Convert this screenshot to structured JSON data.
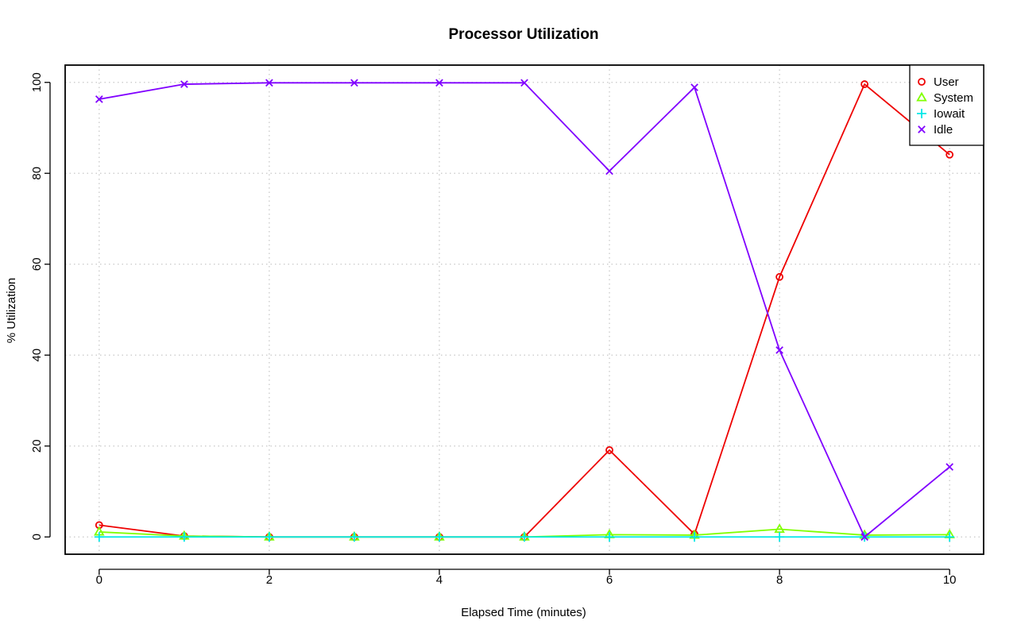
{
  "chart_data": {
    "type": "line",
    "title": "Processor Utilization",
    "xlabel": "Elapsed Time (minutes)",
    "ylabel": "% Utilization",
    "x": [
      0,
      1,
      2,
      3,
      4,
      5,
      6,
      7,
      8,
      9,
      10
    ],
    "x_ticks": [
      "0",
      "2",
      "4",
      "6",
      "8",
      "10"
    ],
    "y_ticks": [
      "0",
      "20",
      "40",
      "60",
      "80",
      "100"
    ],
    "xlim": [
      -0.4,
      10.4
    ],
    "ylim": [
      -3.8,
      103.8
    ],
    "grid": true,
    "legend_position": "top-right",
    "series": [
      {
        "name": "User",
        "color": "#ee0000",
        "marker": "circle",
        "values": [
          2.6,
          0.2,
          0.0,
          0.0,
          0.0,
          0.0,
          19.1,
          0.6,
          57.2,
          99.6,
          84.1
        ]
      },
      {
        "name": "System",
        "color": "#80ff00",
        "marker": "triangle",
        "values": [
          1.1,
          0.2,
          0.0,
          0.0,
          0.0,
          0.0,
          0.5,
          0.4,
          1.7,
          0.4,
          0.5
        ]
      },
      {
        "name": "Iowait",
        "color": "#00e8e8",
        "marker": "plus",
        "values": [
          0.0,
          0.0,
          0.0,
          0.0,
          0.0,
          0.0,
          0.0,
          0.0,
          0.0,
          0.0,
          0.0
        ]
      },
      {
        "name": "Idle",
        "color": "#8000ff",
        "marker": "cross",
        "values": [
          96.3,
          99.6,
          99.9,
          99.9,
          99.9,
          99.9,
          80.5,
          98.9,
          41.1,
          0.0,
          15.4
        ]
      }
    ]
  }
}
